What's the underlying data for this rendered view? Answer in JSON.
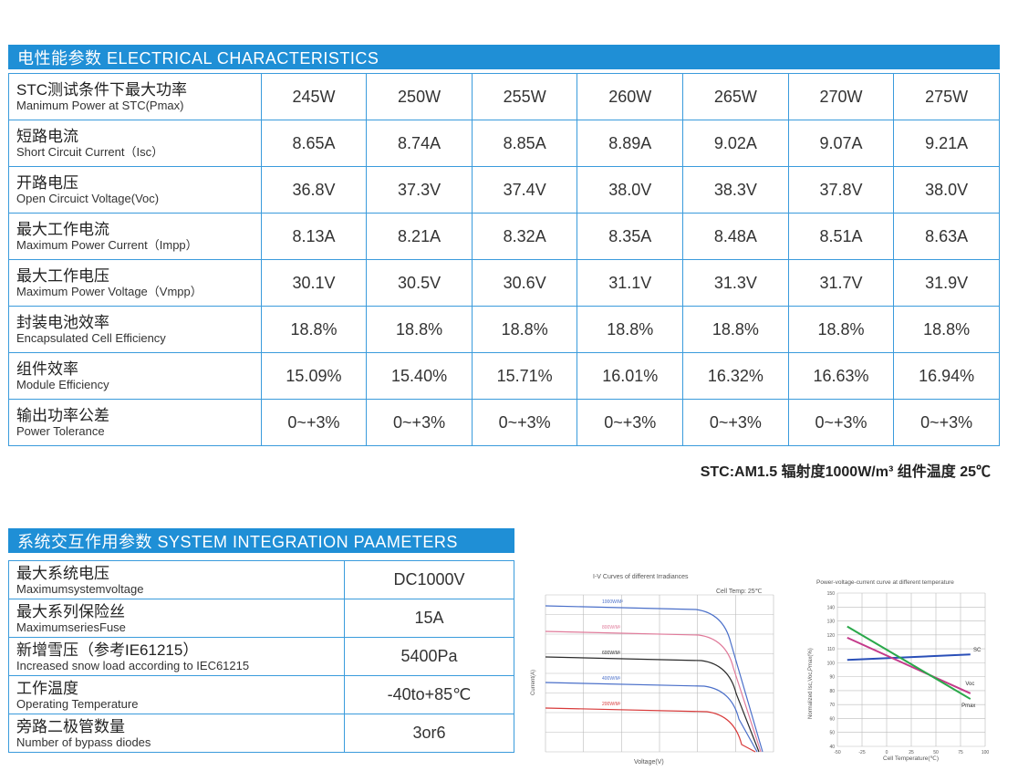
{
  "electrical": {
    "title": "电性能参数 ELECTRICAL CHARACTERISTICS",
    "rows": [
      {
        "zh": "STC测试条件下最大功率",
        "en": "Manimum Power at STC(Pmax)",
        "values": [
          "245W",
          "250W",
          "255W",
          "260W",
          "265W",
          "270W",
          "275W"
        ]
      },
      {
        "zh": "短路电流",
        "en": "Short Circuit Current（Isc）",
        "values": [
          "8.65A",
          "8.74A",
          "8.85A",
          "8.89A",
          "9.02A",
          "9.07A",
          "9.21A"
        ]
      },
      {
        "zh": "开路电压",
        "en": "Open Circuict Voltage(Voc)",
        "values": [
          "36.8V",
          "37.3V",
          "37.4V",
          "38.0V",
          "38.3V",
          "37.8V",
          "38.0V"
        ]
      },
      {
        "zh": "最大工作电流",
        "en": "Maximum Power Current（Impp）",
        "values": [
          "8.13A",
          "8.21A",
          "8.32A",
          "8.35A",
          "8.48A",
          "8.51A",
          "8.63A"
        ]
      },
      {
        "zh": "最大工作电压",
        "en": "Maximum Power Voltage（Vmpp）",
        "values": [
          "30.1V",
          "30.5V",
          "30.6V",
          "31.1V",
          "31.3V",
          "31.7V",
          "31.9V"
        ]
      },
      {
        "zh": "封装电池效率",
        "en": "Encapsulated Cell Efficiency",
        "values": [
          "18.8%",
          "18.8%",
          "18.8%",
          "18.8%",
          "18.8%",
          "18.8%",
          "18.8%"
        ]
      },
      {
        "zh": "组件效率",
        "en": "Module Efficiency",
        "values": [
          "15.09%",
          "15.40%",
          "15.71%",
          "16.01%",
          "16.32%",
          "16.63%",
          "16.94%"
        ]
      },
      {
        "zh": "输出功率公差",
        "en": "Power Tolerance",
        "values": [
          "0~+3%",
          "0~+3%",
          "0~+3%",
          "0~+3%",
          "0~+3%",
          "0~+3%",
          "0~+3%"
        ]
      }
    ],
    "stc_note": "STC:AM1.5  辐射度1000W/m³  组件温度 25℃"
  },
  "system": {
    "title": "系统交互作用参数 SYSTEM INTEGRATION PAAMETERS",
    "rows": [
      {
        "zh": "最大系统电压",
        "en": "Maximumsystemvoltage",
        "value": "DC1000V"
      },
      {
        "zh": "最大系列保险丝",
        "en": "MaximumseriesFuse",
        "value": "15A"
      },
      {
        "zh": "新增雪压（参考IE61215）",
        "en": "Increased snow load according to IEC61215",
        "value": "5400Pa"
      },
      {
        "zh": "工作温度",
        "en": "Operating Temperature",
        "value": "-40to+85℃"
      },
      {
        "zh": "旁路二极管数量",
        "en": "Number of bypass diodes",
        "value": "3or6"
      }
    ]
  },
  "iv_chart": {
    "title": "I-V Curves of different Irradiances",
    "note": "Cell Temp: 25℃",
    "xlabel": "Voltage(V)",
    "ylabel": "Current(A)",
    "labels": [
      "1000W/M²",
      "800W/M²",
      "600W/M²",
      "400W/M²",
      "200W/M²"
    ],
    "colors": [
      "#4a6fc9",
      "#e07a9a",
      "#2a2a2a",
      "#4a6fc9",
      "#d83a3a"
    ]
  },
  "temp_chart": {
    "title": "Power-voltage-current curve at different temperature",
    "xlabel": "Cell Temperature(℃)",
    "ylabel": "Normalized Isc,Voc,Pmax(%)",
    "xticks": [
      "-50",
      "-25",
      "0",
      "25",
      "50",
      "75",
      "100"
    ],
    "yticks": [
      "150",
      "140",
      "130",
      "120",
      "110",
      "100",
      "90",
      "80",
      "70",
      "60",
      "50",
      "40"
    ],
    "series": [
      {
        "name": "SC",
        "color": "#2a4fb8"
      },
      {
        "name": "Voc",
        "color": "#c43a8a"
      },
      {
        "name": "Pmax",
        "color": "#2aa84a"
      }
    ]
  }
}
